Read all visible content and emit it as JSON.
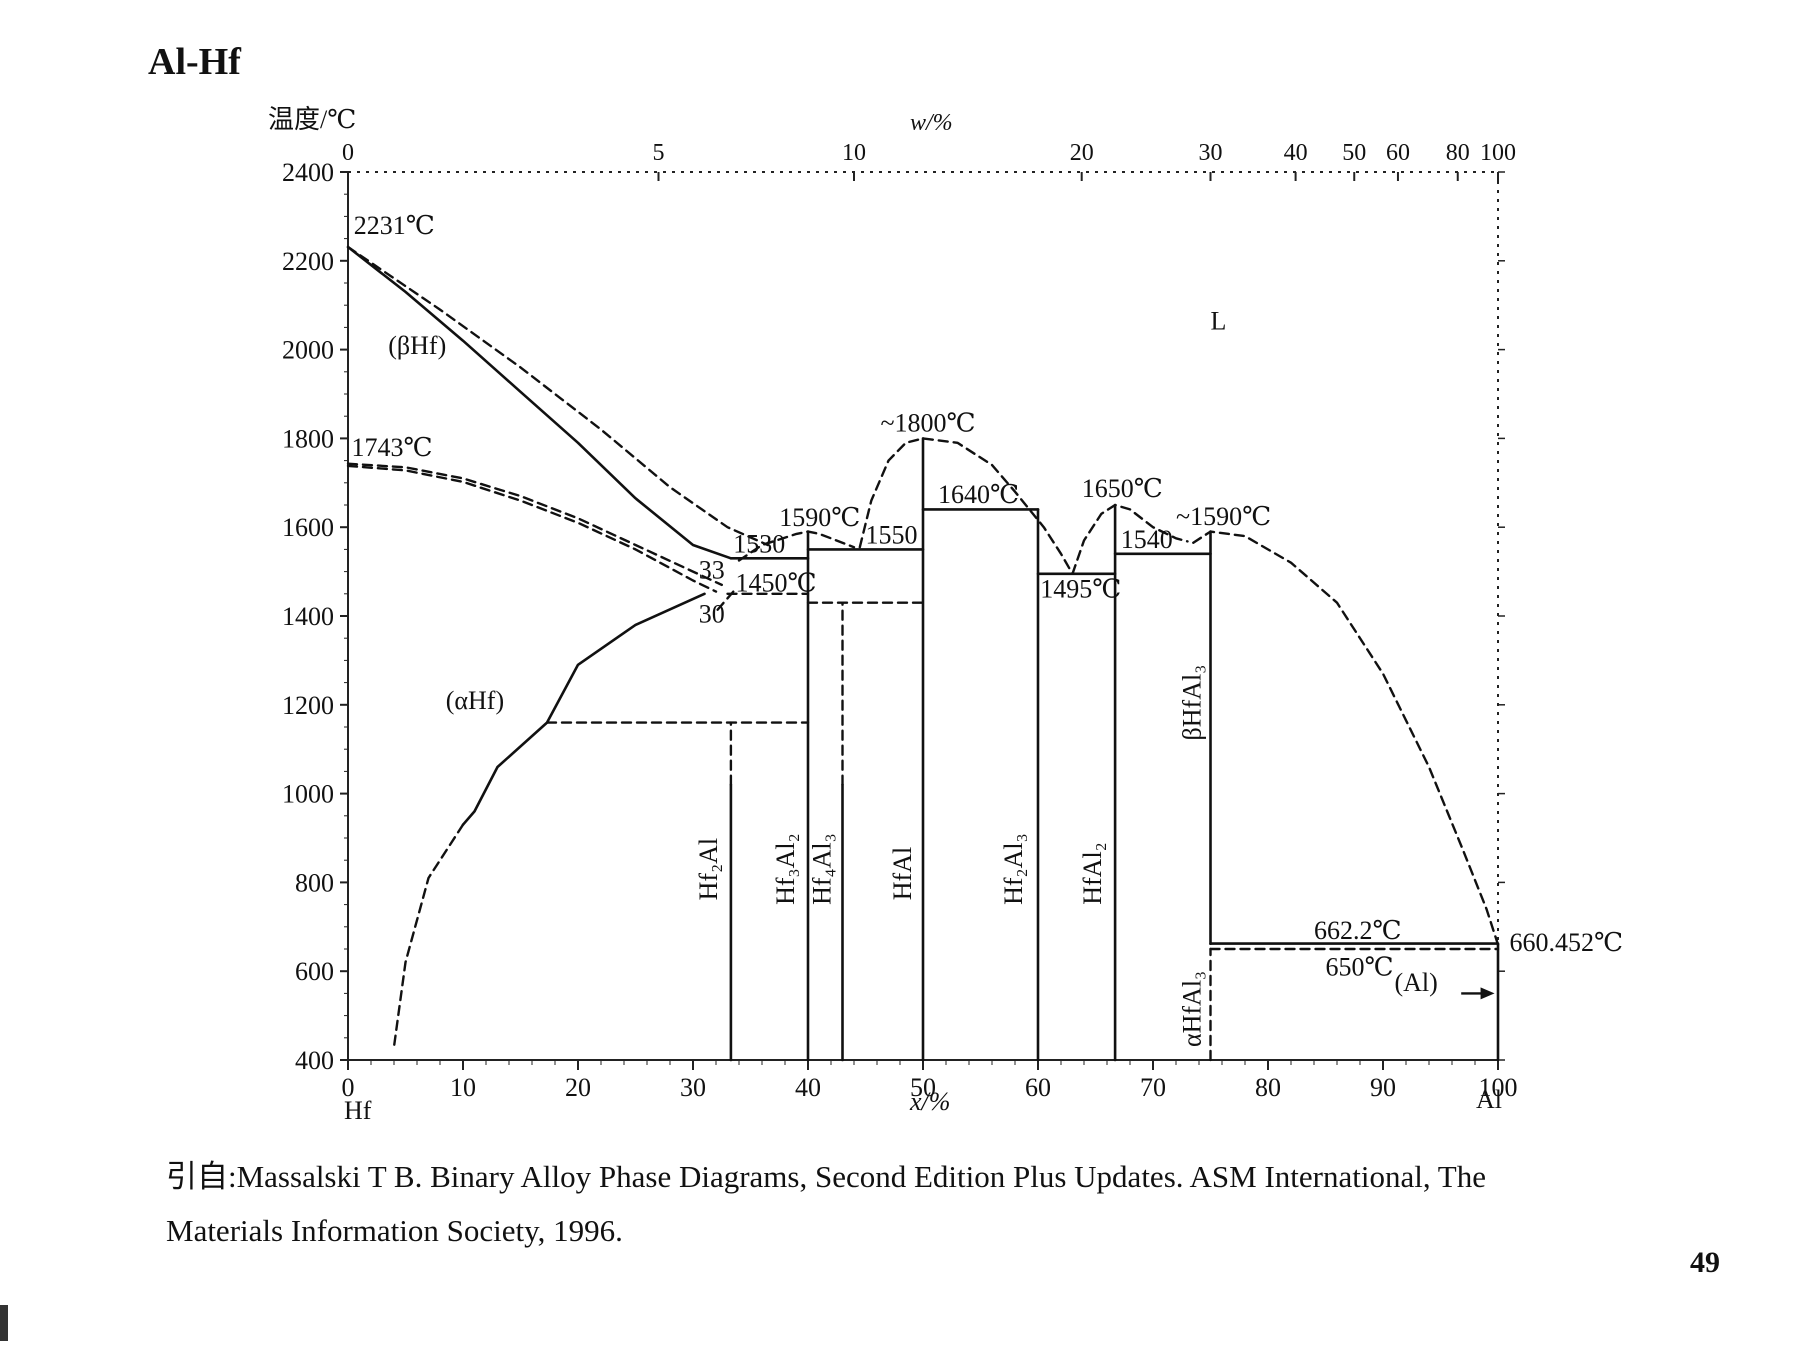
{
  "page": {
    "title": "Al-Hf",
    "citation_line1": "引自:Massalski T B.  Binary Alloy Phase Diagrams, Second Edition Plus Updates.  ASM International, The",
    "citation_line2": "Materials Information Society, 1996.",
    "page_number": "49"
  },
  "chart_data": {
    "type": "line",
    "title": "",
    "xlabel": "x/%",
    "x2label": "w/%",
    "ylabel": "温度/℃",
    "xlim": [
      0,
      100
    ],
    "ylim": [
      400,
      2400
    ],
    "left_element": "Hf",
    "right_element": "Al",
    "x_ticks": [
      0,
      10,
      20,
      30,
      40,
      50,
      60,
      70,
      80,
      90,
      100
    ],
    "y_ticks": [
      400,
      600,
      800,
      1000,
      1200,
      1400,
      1600,
      1800,
      2000,
      2200,
      2400
    ],
    "top_ticks": [
      {
        "label": "0",
        "x": 0
      },
      {
        "label": "5",
        "x": 27
      },
      {
        "label": "10",
        "x": 44
      },
      {
        "label": "20",
        "x": 63.8
      },
      {
        "label": "30",
        "x": 75
      },
      {
        "label": "40",
        "x": 82.4
      },
      {
        "label": "50",
        "x": 87.5
      },
      {
        "label": "60",
        "x": 91.3
      },
      {
        "label": "80",
        "x": 96.5
      },
      {
        "label": "100",
        "x": 100
      }
    ],
    "series": [
      {
        "style": "solid",
        "points": [
          [
            0,
            2231
          ],
          [
            5,
            2130
          ],
          [
            10,
            2020
          ],
          [
            15,
            1905
          ],
          [
            20,
            1790
          ],
          [
            25,
            1665
          ],
          [
            30,
            1560
          ],
          [
            33.3,
            1530
          ]
        ]
      },
      {
        "style": "dashed",
        "points": [
          [
            0,
            2231
          ],
          [
            8,
            2090
          ],
          [
            15,
            1960
          ],
          [
            22,
            1820
          ],
          [
            28,
            1690
          ],
          [
            33,
            1600
          ],
          [
            36.5,
            1560
          ]
        ]
      },
      {
        "style": "dashed",
        "points": [
          [
            0,
            1743
          ],
          [
            5,
            1735
          ],
          [
            10,
            1710
          ],
          [
            15,
            1670
          ],
          [
            20,
            1620
          ],
          [
            25,
            1560
          ],
          [
            30,
            1500
          ],
          [
            32.5,
            1470
          ]
        ]
      },
      {
        "style": "dashed",
        "points": [
          [
            0,
            1738
          ],
          [
            5,
            1728
          ],
          [
            10,
            1702
          ],
          [
            15,
            1660
          ],
          [
            20,
            1610
          ],
          [
            25,
            1550
          ],
          [
            30,
            1480
          ],
          [
            32,
            1455
          ]
        ]
      },
      {
        "style": "solid",
        "points": [
          [
            31,
            1450
          ],
          [
            25,
            1380
          ],
          [
            20,
            1290
          ],
          [
            17.3,
            1160
          ],
          [
            13,
            1060
          ],
          [
            11,
            960
          ],
          [
            10,
            930
          ]
        ]
      },
      {
        "style": "dashed",
        "points": [
          [
            10,
            930
          ],
          [
            7,
            810
          ],
          [
            5,
            620
          ],
          [
            4,
            430
          ]
        ]
      },
      {
        "style": "dashed",
        "points": [
          [
            33.5,
            1455
          ],
          [
            32,
            1410
          ]
        ]
      },
      {
        "style": "solid",
        "points": [
          [
            33.3,
            1530
          ],
          [
            40,
            1530
          ]
        ]
      },
      {
        "style": "dashed",
        "points": [
          [
            33,
            1450
          ],
          [
            40,
            1450
          ]
        ]
      },
      {
        "style": "dashed",
        "points": [
          [
            17.3,
            1160
          ],
          [
            40,
            1160
          ]
        ]
      },
      {
        "style": "dashed",
        "points": [
          [
            34,
            1525
          ],
          [
            36,
            1560
          ],
          [
            39,
            1585
          ],
          [
            40,
            1590
          ],
          [
            41,
            1585
          ],
          [
            44,
            1555
          ]
        ]
      },
      {
        "style": "solid",
        "points": [
          [
            40,
            1550
          ],
          [
            50,
            1550
          ]
        ]
      },
      {
        "style": "dashed",
        "points": [
          [
            40,
            1430
          ],
          [
            50,
            1430
          ]
        ]
      },
      {
        "style": "dashed",
        "points": [
          [
            44.5,
            1555
          ],
          [
            45.5,
            1660
          ],
          [
            47,
            1750
          ],
          [
            48.5,
            1790
          ],
          [
            50,
            1800
          ],
          [
            53,
            1790
          ],
          [
            56,
            1740
          ],
          [
            58,
            1680
          ],
          [
            60.5,
            1600
          ],
          [
            62,
            1540
          ],
          [
            63,
            1495
          ]
        ]
      },
      {
        "style": "solid",
        "points": [
          [
            50,
            1640
          ],
          [
            60,
            1640
          ]
        ]
      },
      {
        "style": "solid",
        "points": [
          [
            60,
            1495
          ],
          [
            66.7,
            1495
          ]
        ]
      },
      {
        "style": "dashed",
        "points": [
          [
            63,
            1495
          ],
          [
            64,
            1570
          ],
          [
            65.5,
            1630
          ],
          [
            66.7,
            1650
          ],
          [
            68,
            1640
          ],
          [
            70,
            1600
          ],
          [
            72,
            1575
          ],
          [
            73,
            1568
          ]
        ]
      },
      {
        "style": "solid",
        "points": [
          [
            66.7,
            1540
          ],
          [
            75,
            1540
          ]
        ]
      },
      {
        "style": "dashed",
        "points": [
          [
            73.5,
            1565
          ],
          [
            75,
            1590
          ],
          [
            78,
            1580
          ],
          [
            82,
            1520
          ],
          [
            86,
            1430
          ],
          [
            90,
            1270
          ],
          [
            94,
            1060
          ],
          [
            97,
            870
          ],
          [
            99,
            740
          ],
          [
            100,
            660
          ]
        ]
      },
      {
        "style": "solid",
        "points": [
          [
            75,
            662.2
          ],
          [
            100,
            662.2
          ]
        ]
      },
      {
        "style": "dashed",
        "points": [
          [
            75,
            650
          ],
          [
            100,
            650
          ]
        ]
      },
      {
        "style": "solid",
        "points": [
          [
            33.3,
            400
          ],
          [
            33.3,
            1020
          ]
        ]
      },
      {
        "style": "dashed",
        "points": [
          [
            33.3,
            1020
          ],
          [
            33.3,
            1160
          ]
        ]
      },
      {
        "style": "solid",
        "points": [
          [
            40,
            400
          ],
          [
            40,
            1590
          ]
        ]
      },
      {
        "style": "solid",
        "points": [
          [
            43,
            400
          ],
          [
            43,
            1020
          ]
        ]
      },
      {
        "style": "dashed",
        "points": [
          [
            43,
            1020
          ],
          [
            43,
            1430
          ]
        ]
      },
      {
        "style": "solid",
        "points": [
          [
            50,
            400
          ],
          [
            50,
            1800
          ]
        ]
      },
      {
        "style": "solid",
        "points": [
          [
            60,
            400
          ],
          [
            60,
            1640
          ]
        ]
      },
      {
        "style": "solid",
        "points": [
          [
            66.7,
            400
          ],
          [
            66.7,
            1650
          ]
        ]
      },
      {
        "style": "solid",
        "points": [
          [
            75,
            662
          ],
          [
            75,
            1590
          ]
        ]
      },
      {
        "style": "dashed",
        "points": [
          [
            75,
            400
          ],
          [
            75,
            650
          ]
        ]
      },
      {
        "style": "solid",
        "points": [
          [
            100,
            400
          ],
          [
            100,
            660
          ]
        ]
      }
    ],
    "annotations": [
      {
        "text": "2231℃",
        "x": 0.5,
        "y": 2260
      },
      {
        "text": "1743℃",
        "x": 0.3,
        "y": 1760
      },
      {
        "text": "(βHf)",
        "x": 3.5,
        "y": 1990
      },
      {
        "text": "(αHf)",
        "x": 8.5,
        "y": 1190
      },
      {
        "text": "L",
        "x": 75,
        "y": 2045
      },
      {
        "text": "1530",
        "x": 33.5,
        "y": 1543
      },
      {
        "text": "33",
        "x": 30.5,
        "y": 1485
      },
      {
        "text": "1450℃",
        "x": 33.7,
        "y": 1455
      },
      {
        "text": "30",
        "x": 30.5,
        "y": 1385
      },
      {
        "text": "1590℃",
        "x": 37.5,
        "y": 1603
      },
      {
        "text": "1550",
        "x": 45,
        "y": 1563
      },
      {
        "text": "~1800℃",
        "x": 46.3,
        "y": 1815
      },
      {
        "text": "1640℃",
        "x": 51.3,
        "y": 1655
      },
      {
        "text": "1495℃",
        "x": 60.2,
        "y": 1442
      },
      {
        "text": "1650℃",
        "x": 63.8,
        "y": 1668
      },
      {
        "text": "1540",
        "x": 67.2,
        "y": 1553
      },
      {
        "text": "~1590℃",
        "x": 72,
        "y": 1605
      },
      {
        "text": "662.2℃",
        "x": 84,
        "y": 672
      },
      {
        "text": "650℃",
        "x": 85,
        "y": 590
      },
      {
        "text": "(Al)",
        "x": 91,
        "y": 555
      },
      {
        "text": "660.452℃",
        "x": 101,
        "y": 645
      }
    ],
    "phase_labels": [
      {
        "text": "Hf₂Al",
        "x": 33.3
      },
      {
        "text": "Hf₃Al₂",
        "x": 40
      },
      {
        "text": "Hf₄Al₃",
        "x": 43
      },
      {
        "text": "HfAl",
        "x": 50
      },
      {
        "text": "Hf₂Al₃",
        "x": 60
      },
      {
        "text": "HfAl₂",
        "x": 66.7
      },
      {
        "text": "βHfAl₃",
        "x": 75
      },
      {
        "text": "αHfAl₃",
        "x": 75
      }
    ]
  }
}
